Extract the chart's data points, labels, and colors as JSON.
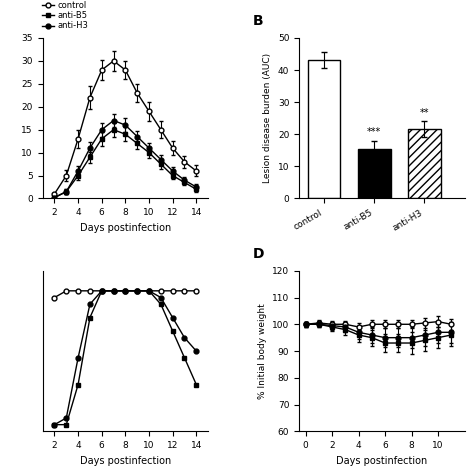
{
  "panel_A": {
    "days": [
      2,
      3,
      4,
      5,
      6,
      7,
      8,
      9,
      10,
      11,
      12,
      13,
      14
    ],
    "control": [
      1,
      5,
      13,
      22,
      28,
      30,
      28,
      23,
      19,
      15,
      11,
      8,
      6
    ],
    "control_err": [
      0.3,
      1.2,
      2,
      2.5,
      2.2,
      2.2,
      2,
      2,
      2,
      1.8,
      1.5,
      1.3,
      1.2
    ],
    "antiB5": [
      0.2,
      1.5,
      5,
      9,
      13,
      15,
      14,
      12,
      10,
      7.5,
      5,
      3.5,
      2
    ],
    "antiB5_err": [
      0.1,
      0.5,
      1.0,
      1.2,
      1.5,
      1.5,
      1.5,
      1.3,
      1.2,
      1.0,
      0.8,
      0.6,
      0.5
    ],
    "antiH3": [
      0.2,
      1.5,
      6,
      11,
      15,
      17,
      16,
      13.5,
      11,
      8.5,
      6,
      4,
      2.5
    ],
    "antiH3_err": [
      0.1,
      0.5,
      1.0,
      1.3,
      1.5,
      1.5,
      1.5,
      1.3,
      1.2,
      1.0,
      0.8,
      0.7,
      0.6
    ],
    "xlabel": "Days postinfection",
    "ylim": [
      0,
      35
    ],
    "xlim": [
      1,
      15
    ],
    "xticks": [
      2,
      4,
      6,
      8,
      10,
      12,
      14
    ]
  },
  "panel_B": {
    "categories": [
      "control",
      "anti-B5",
      "anti-H3"
    ],
    "values": [
      43,
      15.5,
      21.5
    ],
    "errors": [
      2.5,
      2.5,
      2.5
    ],
    "ylabel": "Lesion disease burden (AUC)",
    "ylim": [
      0,
      50
    ],
    "yticks": [
      0,
      10,
      20,
      30,
      40,
      50
    ],
    "sig_labels": [
      "",
      "***",
      "**"
    ]
  },
  "panel_C": {
    "days": [
      2,
      3,
      4,
      5,
      6,
      7,
      8,
      9,
      10,
      11,
      12,
      13,
      14
    ],
    "control": [
      95,
      100,
      100,
      100,
      100,
      100,
      100,
      100,
      100,
      100,
      100,
      100,
      100
    ],
    "antiB5": [
      0,
      0,
      30,
      80,
      100,
      100,
      100,
      100,
      100,
      90,
      70,
      50,
      30
    ],
    "antiH3": [
      0,
      5,
      50,
      90,
      100,
      100,
      100,
      100,
      100,
      95,
      80,
      65,
      55
    ],
    "xlabel": "Days postinfection",
    "ylim": [
      -5,
      115
    ],
    "xlim": [
      1,
      15
    ],
    "xticks": [
      2,
      4,
      6,
      8,
      10,
      12,
      14
    ]
  },
  "panel_D": {
    "days": [
      0,
      1,
      2,
      3,
      4,
      5,
      6,
      7,
      8,
      9,
      10,
      11
    ],
    "control": [
      100,
      100.5,
      100,
      100,
      99,
      100,
      100,
      100,
      100,
      100.5,
      101,
      100
    ],
    "control_err": [
      1.0,
      1.0,
      1.2,
      1.2,
      1.5,
      1.5,
      1.5,
      1.5,
      1.5,
      2.0,
      2.0,
      2.0
    ],
    "antiB5": [
      100,
      100,
      99,
      98,
      96,
      95,
      93,
      93,
      93,
      94,
      95,
      96
    ],
    "antiB5_err": [
      1.0,
      1.2,
      1.5,
      2.0,
      2.5,
      3.0,
      3.5,
      3.5,
      4.0,
      4.0,
      4.0,
      4.0
    ],
    "antiH3": [
      100,
      100,
      99.5,
      99,
      97,
      96,
      95,
      95,
      95,
      96,
      97,
      97
    ],
    "antiH3_err": [
      1.0,
      1.2,
      1.5,
      2.0,
      2.5,
      3.0,
      3.5,
      3.5,
      4.0,
      4.0,
      4.0,
      4.0
    ],
    "ylabel": "% Initial body weight",
    "xlabel": "Days postinfection",
    "ylim": [
      60,
      120
    ],
    "yticks": [
      60,
      70,
      80,
      90,
      100,
      110,
      120
    ],
    "xlim": [
      -0.5,
      12
    ],
    "xticks": [
      0,
      2,
      4,
      6,
      8,
      10
    ]
  },
  "legend": {
    "control_label": "control",
    "antiB5_label": "anti-B5",
    "antiH3_label": "anti-H3"
  }
}
